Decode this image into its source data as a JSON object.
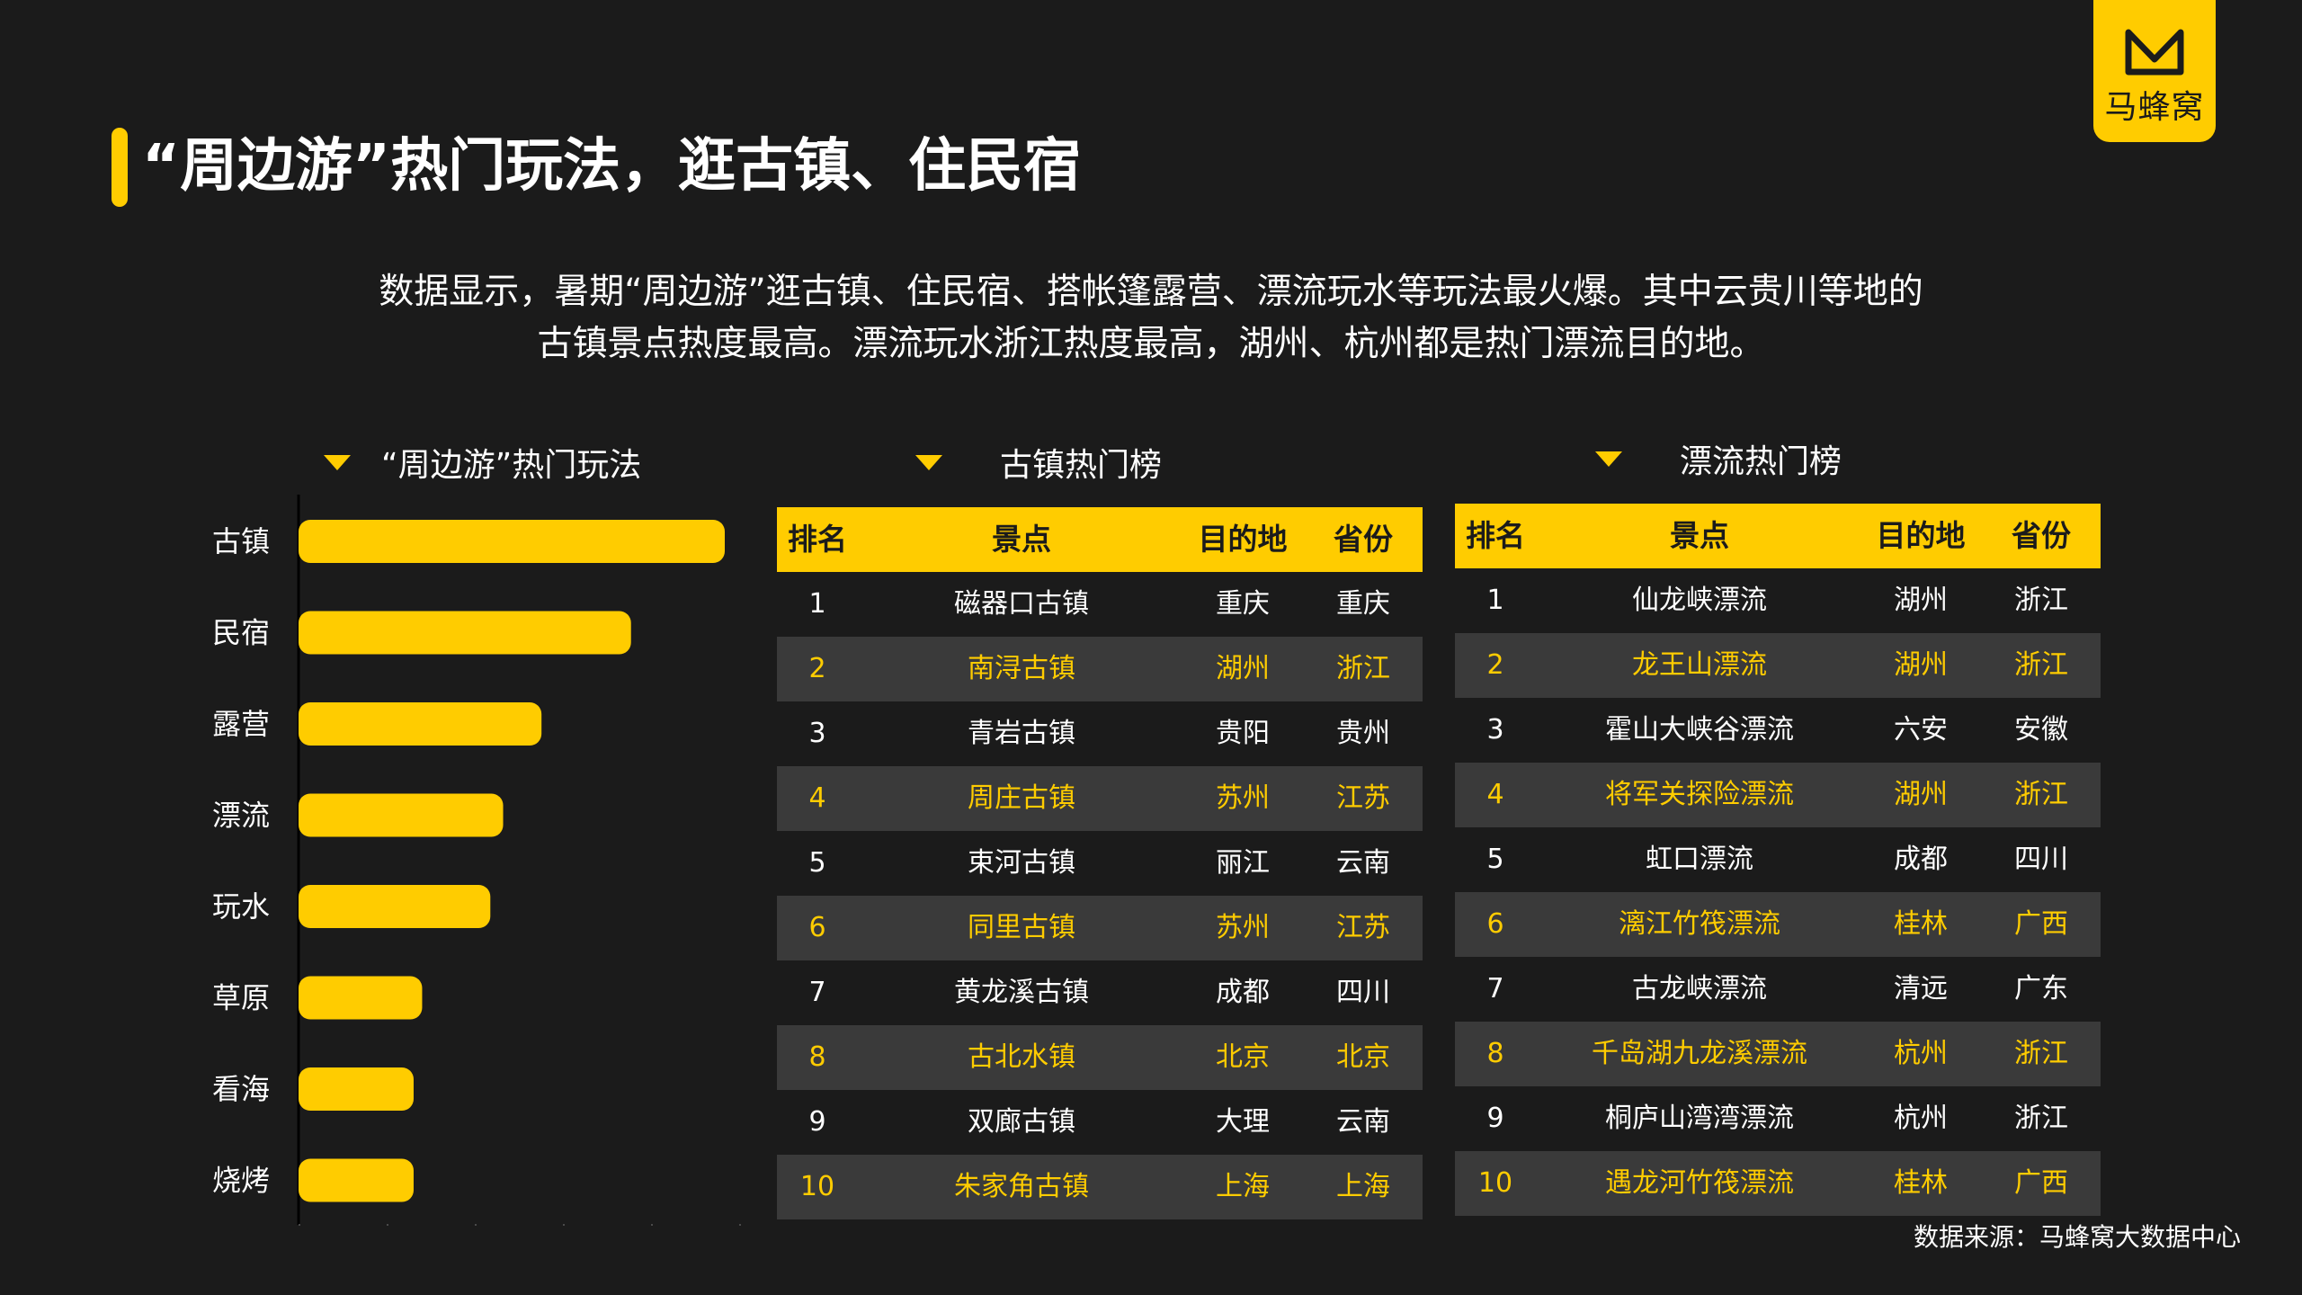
{
  "brand": {
    "name": "马蜂窝",
    "color": "#ffcc00"
  },
  "page": {
    "title": "“周边游”热门玩法，逛古镇、住民宿",
    "description_lines": [
      "数据显示，暑期“周边游”逛古镇、住民宿、搭帐篷露营、漂流玩水等玩法最火爆。其中云贵川等地的",
      "古镇景点热度最高。漂流玩水浙江热度最高，湖州、杭州都是热门漂流目的地。"
    ],
    "source": "数据来源：马蜂窝大数据中心"
  },
  "colors": {
    "background": "#1b1b1b",
    "accent": "#ffcc00",
    "alt_row": "#3a3a3a"
  },
  "chart_title": "“周边游”热门玩法",
  "chart_data": {
    "type": "bar",
    "orientation": "horizontal",
    "categories": [
      "古镇",
      "民宿",
      "露营",
      "漂流",
      "玩水",
      "草原",
      "看海",
      "烧烤"
    ],
    "values": [
      100,
      78,
      57,
      48,
      45,
      29,
      27,
      27
    ],
    "xlim": [
      0,
      100
    ],
    "bar_color": "#ffcc00",
    "grid": false
  },
  "table_guzhen": {
    "title": "古镇热门榜",
    "headers": [
      "排名",
      "景点",
      "目的地",
      "省份"
    ],
    "rows": [
      [
        "1",
        "磁器口古镇",
        "重庆",
        "重庆"
      ],
      [
        "2",
        "南浔古镇",
        "湖州",
        "浙江"
      ],
      [
        "3",
        "青岩古镇",
        "贵阳",
        "贵州"
      ],
      [
        "4",
        "周庄古镇",
        "苏州",
        "江苏"
      ],
      [
        "5",
        "束河古镇",
        "丽江",
        "云南"
      ],
      [
        "6",
        "同里古镇",
        "苏州",
        "江苏"
      ],
      [
        "7",
        "黄龙溪古镇",
        "成都",
        "四川"
      ],
      [
        "8",
        "古北水镇",
        "北京",
        "北京"
      ],
      [
        "9",
        "双廊古镇",
        "大理",
        "云南"
      ],
      [
        "10",
        "朱家角古镇",
        "上海",
        "上海"
      ]
    ]
  },
  "table_piaoliu": {
    "title": "漂流热门榜",
    "headers": [
      "排名",
      "景点",
      "目的地",
      "省份"
    ],
    "rows": [
      [
        "1",
        "仙龙峡漂流",
        "湖州",
        "浙江"
      ],
      [
        "2",
        "龙王山漂流",
        "湖州",
        "浙江"
      ],
      [
        "3",
        "霍山大峡谷漂流",
        "六安",
        "安徽"
      ],
      [
        "4",
        "将军关探险漂流",
        "湖州",
        "浙江"
      ],
      [
        "5",
        "虹口漂流",
        "成都",
        "四川"
      ],
      [
        "6",
        "漓江竹筏漂流",
        "桂林",
        "广西"
      ],
      [
        "7",
        "古龙峡漂流",
        "清远",
        "广东"
      ],
      [
        "8",
        "千岛湖九龙溪漂流",
        "杭州",
        "浙江"
      ],
      [
        "9",
        "桐庐山湾湾漂流",
        "杭州",
        "浙江"
      ],
      [
        "10",
        "遇龙河竹筏漂流",
        "桂林",
        "广西"
      ]
    ]
  }
}
